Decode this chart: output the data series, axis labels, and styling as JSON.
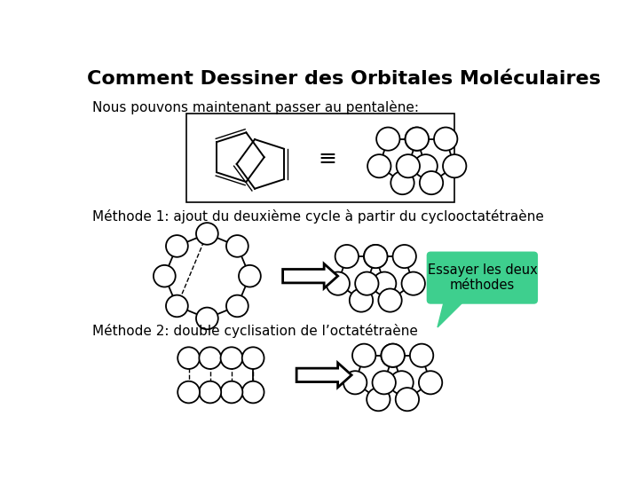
{
  "title": "Comment Dessiner des Orbitales Moléculaires",
  "text1": "Nous pouvons maintenant passer au pentalène:",
  "text2": "Méthode 1: ajout du deuxième cycle à partir du cyclooctatétraène",
  "text3": "Méthode 2: double cyclisation de l’octatétraène",
  "bubble_text": "Essayer les deux\nméthodes",
  "bubble_color": "#3ecf8e",
  "bg_color": "#ffffff",
  "title_fontsize": 16,
  "text_fontsize": 11,
  "line_color": "#000000"
}
